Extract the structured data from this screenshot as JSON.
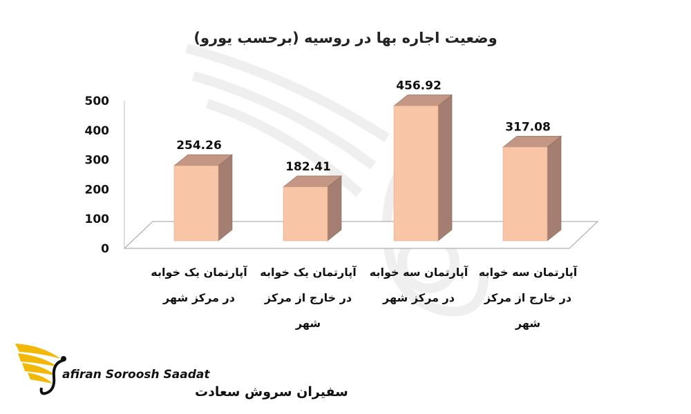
{
  "chart_data": {
    "type": "bar",
    "title": "وضعیت اجاره بها در روسیه (برحسب یورو)",
    "ylim": [
      0,
      500
    ],
    "y_ticks": [
      0,
      100,
      200,
      300,
      400,
      500
    ],
    "categories": [
      [
        "آپارتمان یک خوابه",
        "در مرکز شهر"
      ],
      [
        "آپارتمان یک خوابه",
        "در خارج از مرکز",
        "شهر"
      ],
      [
        "آپارتمان سه خوابه",
        "در مرکز شهر"
      ],
      [
        "آپارتمان سه خوابه",
        "در خارج از مرکز",
        "شهر"
      ]
    ],
    "values": [
      254.26,
      182.41,
      456.92,
      317.08
    ],
    "value_labels": [
      "254.26",
      "182.41",
      "456.92",
      "317.08"
    ],
    "grid": false,
    "legend": "none",
    "style": "3d-column"
  },
  "colors": {
    "bar_front": "#f8c6a6",
    "bar_side": "#a47e70",
    "bar_top": "#c49684",
    "bar_edge": "#8a6a5c",
    "floor": "#ffffff",
    "axis": "#999999",
    "logo_gold": "#f2b807"
  },
  "logo": {
    "text_en": "afiran Soroosh Saadat",
    "text_fa": "سفیران سروش سعادت"
  }
}
